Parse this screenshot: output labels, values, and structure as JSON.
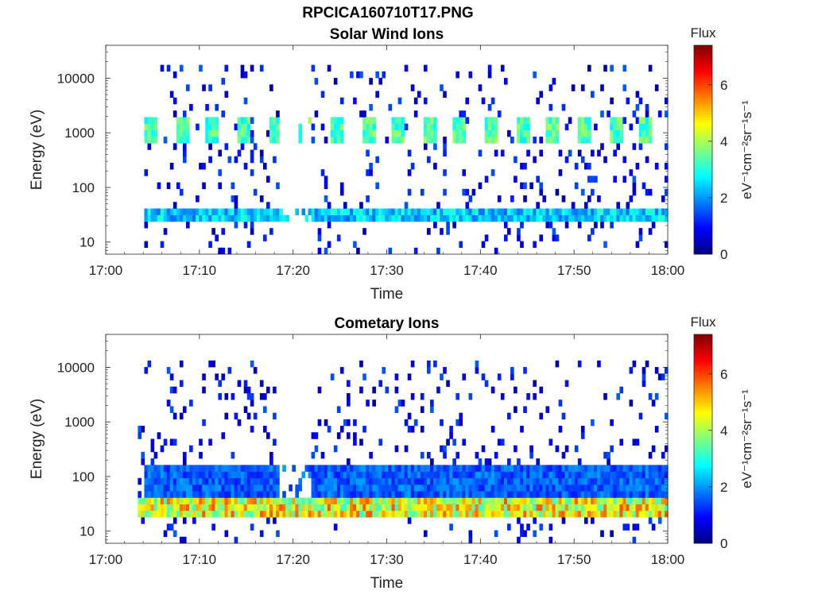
{
  "page_title": "RPCICA160710T17.PNG",
  "chart_data": [
    {
      "type": "heatmap",
      "title": "Solar Wind Ions",
      "xlabel": "Time",
      "ylabel": "Energy (eV)",
      "y_scale": "log",
      "ylim": [
        6,
        40000
      ],
      "x_ticks": [
        "17:00",
        "17:10",
        "17:20",
        "17:30",
        "17:40",
        "17:50",
        "18:00"
      ],
      "y_ticks": [
        "10",
        "100",
        "1000",
        "10000"
      ],
      "colorbar": {
        "label": "Flux",
        "units": "eV⁻¹cm⁻²sr⁻¹s⁻¹",
        "ticks": [
          "0",
          "2",
          "4",
          "6"
        ],
        "range": [
          0,
          7.4
        ],
        "colormap": "jet"
      },
      "features": [
        {
          "energy_range_eV": [
            600,
            2000
          ],
          "flux_peak": 3.8,
          "period_min": 3.3,
          "from": "17:04",
          "to": "18:00"
        },
        {
          "energy_range_eV": [
            25,
            45
          ],
          "flux_peak": 3.0,
          "from": "17:04",
          "to": "18:00"
        },
        {
          "energy_range_eV": [
            6,
            20000
          ],
          "flux_peak": 1.0,
          "note": "sparse background counts"
        }
      ]
    },
    {
      "type": "heatmap",
      "title": "Cometary Ions",
      "xlabel": "Time",
      "ylabel": "Energy (eV)",
      "y_scale": "log",
      "ylim": [
        6,
        40000
      ],
      "x_ticks": [
        "17:00",
        "17:10",
        "17:20",
        "17:30",
        "17:40",
        "17:50",
        "18:00"
      ],
      "y_ticks": [
        "10",
        "100",
        "1000",
        "10000"
      ],
      "colorbar": {
        "label": "Flux",
        "units": "eV⁻¹cm⁻²sr⁻¹s⁻¹",
        "ticks": [
          "0",
          "2",
          "4",
          "6"
        ],
        "range": [
          0,
          7.4
        ],
        "colormap": "jet"
      },
      "features": [
        {
          "energy_range_eV": [
            20,
            45
          ],
          "flux_peak": 5.6,
          "from": "17:03",
          "to": "18:00"
        },
        {
          "energy_range_eV": [
            45,
            150
          ],
          "flux_peak": 2.0,
          "from": "17:04",
          "to": "18:00"
        },
        {
          "energy_range_eV": [
            6,
            12000
          ],
          "flux_peak": 1.0,
          "note": "sparse background counts"
        }
      ]
    }
  ]
}
